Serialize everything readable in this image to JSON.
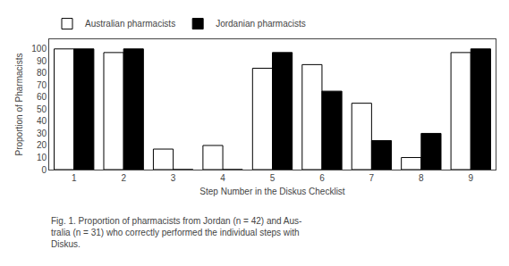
{
  "chart_data": {
    "type": "bar",
    "categories": [
      "1",
      "2",
      "3",
      "4",
      "5",
      "6",
      "7",
      "8",
      "9"
    ],
    "series": [
      {
        "name": "Australian pharmacists",
        "color": "white",
        "values": [
          100,
          97,
          17,
          20,
          84,
          87,
          55,
          10,
          97
        ]
      },
      {
        "name": "Jordanian pharmacists",
        "color": "black",
        "values": [
          100,
          100,
          0,
          0,
          97,
          65,
          24,
          30,
          100
        ]
      }
    ],
    "xlabel": "Step Number in the Diskus Checklist",
    "ylabel": "Proportion of Pharmacists",
    "ylim": [
      0,
      108
    ],
    "yticks": [
      0,
      10,
      20,
      30,
      40,
      50,
      60,
      70,
      80,
      90,
      100
    ],
    "grid": false,
    "legend": "top",
    "annotations": [
      "Fig. 1. Proportion of pharmacists from Jordan (n = 42) and Aus-",
      "tralia (n = 31) who correctly performed the individual steps with",
      "Diskus."
    ]
  }
}
